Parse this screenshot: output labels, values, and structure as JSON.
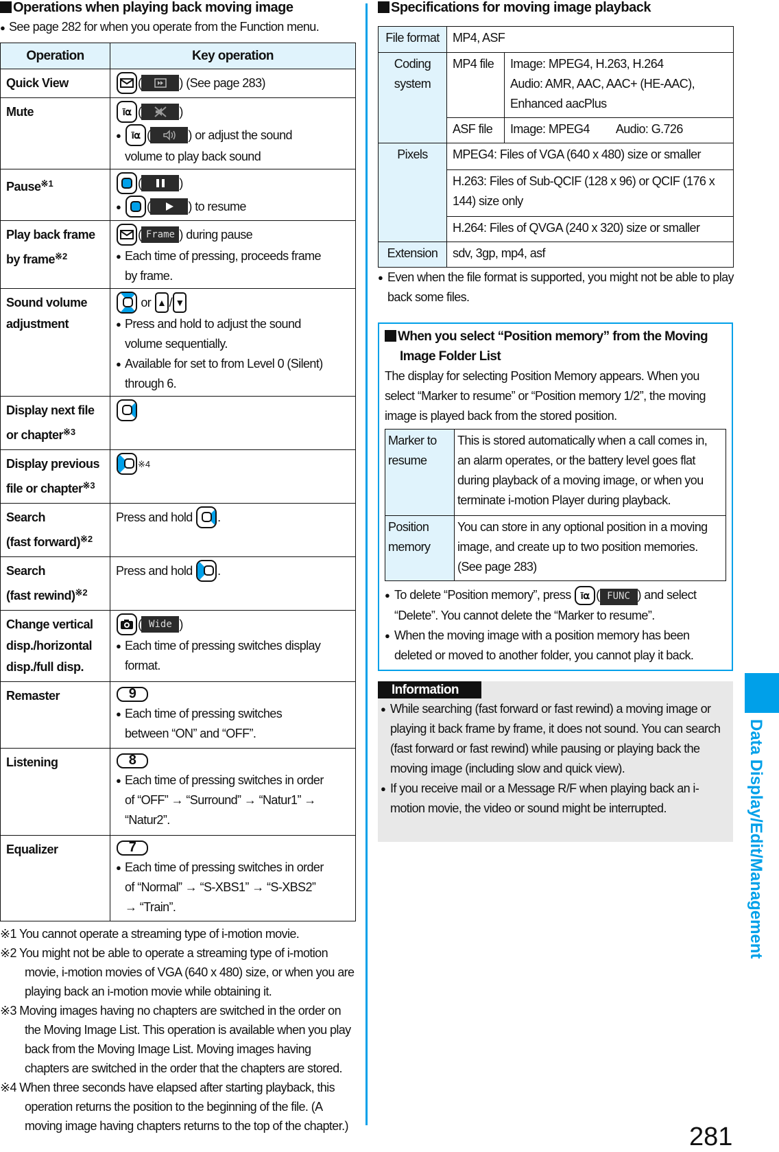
{
  "left": {
    "title": "Operations when playing back moving image",
    "note": "See page 282 for when you operate from the Function menu.",
    "table": {
      "headers": [
        "Operation",
        "Key operation"
      ],
      "rows": [
        {
          "op": [
            "Quick View"
          ],
          "note": "",
          "lines": [
            {
              "seg": [
                {
                  "k": "mail"
                },
                {
                  "t": "("
                },
                {
                  "si": "quick-view"
                },
                {
                  "t": ") (See page 283)"
                }
              ]
            }
          ]
        },
        {
          "op": [
            "Mute"
          ],
          "note": "",
          "lines": [
            {
              "seg": [
                {
                  "k": "i-alpha"
                },
                {
                  "t": "("
                },
                {
                  "si": "mute"
                },
                {
                  "t": ")"
                }
              ]
            },
            {
              "bullet": true,
              "seg": [
                {
                  "k": "i-alpha"
                },
                {
                  "t": "("
                },
                {
                  "si": "speaker"
                },
                {
                  "t": ") or adjust the sound"
                }
              ]
            },
            {
              "indent": true,
              "seg": [
                {
                  "t": "volume to play back sound"
                }
              ]
            }
          ]
        },
        {
          "op": [
            "Pause"
          ],
          "note": "※1",
          "lines": [
            {
              "seg": [
                {
                  "k": "center"
                },
                {
                  "t": "("
                },
                {
                  "si": "pause"
                },
                {
                  "t": ")"
                }
              ]
            },
            {
              "bullet": true,
              "seg": [
                {
                  "k": "center"
                },
                {
                  "t": "("
                },
                {
                  "si": "play"
                },
                {
                  "t": ") to resume"
                }
              ]
            }
          ]
        },
        {
          "op": [
            "Play back frame",
            "by frame"
          ],
          "note": "※2",
          "lines": [
            {
              "seg": [
                {
                  "k": "mail"
                },
                {
                  "t": "("
                },
                {
                  "st": "Frame"
                },
                {
                  "t": ") during pause"
                }
              ]
            },
            {
              "bullet": true,
              "seg": [
                {
                  "t": "Each time of pressing, proceeds frame"
                }
              ]
            },
            {
              "indent": true,
              "seg": [
                {
                  "t": "by frame."
                }
              ]
            }
          ]
        },
        {
          "op": [
            "Sound volume",
            "adjustment"
          ],
          "note": "",
          "lines": [
            {
              "seg": [
                {
                  "k": "up-down"
                },
                {
                  "t": " or "
                },
                {
                  "k": "up"
                },
                {
                  "t": "/"
                },
                {
                  "k": "down"
                }
              ]
            },
            {
              "bullet": true,
              "seg": [
                {
                  "t": "Press and hold to adjust the sound"
                }
              ]
            },
            {
              "indent": true,
              "seg": [
                {
                  "t": "volume sequentially."
                }
              ]
            },
            {
              "bullet": true,
              "seg": [
                {
                  "t": "Available for set to from Level 0 (Silent)"
                }
              ]
            },
            {
              "indent": true,
              "seg": [
                {
                  "t": "through 6."
                }
              ]
            }
          ]
        },
        {
          "op": [
            "Display next file",
            "or chapter"
          ],
          "note": "※3",
          "lines": [
            {
              "seg": [
                {
                  "k": "right"
                }
              ]
            }
          ]
        },
        {
          "op": [
            "Display previous",
            "file or chapter"
          ],
          "note": "※3",
          "lines": [
            {
              "seg": [
                {
                  "k": "left"
                },
                {
                  "sup": "※4"
                }
              ]
            }
          ]
        },
        {
          "op": [
            "Search",
            "(fast forward)"
          ],
          "note": "※2",
          "lines": [
            {
              "seg": [
                {
                  "t": "Press and hold "
                },
                {
                  "k": "right"
                },
                {
                  "t": "."
                }
              ]
            }
          ]
        },
        {
          "op": [
            "Search",
            "(fast rewind)"
          ],
          "note": "※2",
          "lines": [
            {
              "seg": [
                {
                  "t": "Press and hold "
                },
                {
                  "k": "left"
                },
                {
                  "t": "."
                }
              ]
            }
          ]
        },
        {
          "op": [
            "Change vertical",
            "disp./horizontal",
            "disp./full disp."
          ],
          "note": "",
          "lines": [
            {
              "seg": [
                {
                  "k": "camera"
                },
                {
                  "t": "("
                },
                {
                  "st": "Wide"
                },
                {
                  "t": ")"
                }
              ]
            },
            {
              "bullet": true,
              "seg": [
                {
                  "t": "Each time of pressing switches display"
                }
              ]
            },
            {
              "indent": true,
              "seg": [
                {
                  "t": "format."
                }
              ]
            }
          ]
        },
        {
          "op": [
            "Remaster"
          ],
          "note": "",
          "lines": [
            {
              "seg": [
                {
                  "n": "9"
                }
              ]
            },
            {
              "bullet": true,
              "seg": [
                {
                  "t": "Each time of pressing switches"
                }
              ]
            },
            {
              "indent": true,
              "seg": [
                {
                  "t": "between “ON” and “OFF”."
                }
              ]
            }
          ]
        },
        {
          "op": [
            "Listening"
          ],
          "note": "",
          "lines": [
            {
              "seg": [
                {
                  "n": "8"
                }
              ]
            },
            {
              "bullet": true,
              "seg": [
                {
                  "t": "Each time of pressing switches in order"
                }
              ]
            },
            {
              "indent": true,
              "seg": [
                {
                  "t": "of “OFF” → “Surround” → “Natur1” →"
                }
              ]
            },
            {
              "indent": true,
              "seg": [
                {
                  "t": "“Natur2”."
                }
              ]
            }
          ]
        },
        {
          "op": [
            "Equalizer"
          ],
          "note": "",
          "lines": [
            {
              "seg": [
                {
                  "n": "7"
                }
              ]
            },
            {
              "bullet": true,
              "seg": [
                {
                  "t": "Each time of pressing switches in order"
                }
              ]
            },
            {
              "indent": true,
              "seg": [
                {
                  "t": "of “Normal” → “S-XBS1” → “S-XBS2”"
                }
              ]
            },
            {
              "indent": true,
              "seg": [
                {
                  "t": "→ “Train”."
                }
              ]
            }
          ]
        }
      ]
    },
    "footnotes": [
      "※1 You cannot operate a streaming type of i-motion movie.",
      "※2 You might not be able to operate a streaming type of i-motion movie, i-motion movies of VGA (640 x 480) size, or when you are playing back an i-motion movie while obtaining it.",
      "※3 Moving images having no chapters are switched in the order on the Moving Image List. This operation is available when you play back from the Moving Image List. Moving images having chapters are switched in the order that the chapters are stored.",
      "※4 When three seconds have elapsed after starting playback, this operation returns the position to the beginning of the file. (A moving image having chapters returns to the top of the chapter.)"
    ]
  },
  "right": {
    "spec_title": "Specifications for moving image playback",
    "spec": {
      "file_format_label": "File format",
      "file_format": "MP4, ASF",
      "coding_label": "Coding system",
      "mp4_label": "MP4 file",
      "mp4_value": [
        "Image: MPEG4, H.263, H.264",
        "Audio: AMR, AAC, AAC+ (HE-AAC),",
        "Enhanced aacPlus"
      ],
      "asf_label": "ASF file",
      "asf_image": "Image: MPEG4",
      "asf_audio": "Audio: G.726",
      "pixels_label": "Pixels",
      "pixels": [
        "MPEG4: Files of VGA (640 x 480) size or smaller",
        "H.263: Files of Sub-QCIF (128 x 96) or QCIF (176 x 144) size only",
        "H.264: Files of QVGA (240 x 320) size or smaller"
      ],
      "extension_label": "Extension",
      "extension": "sdv, 3gp, mp4, asf"
    },
    "spec_note": "Even when the file format is supported, you might not be able to play back some files.",
    "pm": {
      "title": "When you select “Position memory” from the Moving Image Folder List",
      "intro": "The display for selecting Position Memory appears. When you select “Marker to resume” or “Position memory 1/2”, the moving image is played back from the stored position.",
      "rows": [
        {
          "label": "Marker to resume",
          "text": "This is stored automatically when a call comes in, an alarm operates, or the battery level goes flat during playback of a moving image, or when you terminate i-motion Player during playback."
        },
        {
          "label": "Position memory",
          "text": "You can store in any optional position in a moving image, and create up to two position memories. (See page 283)"
        }
      ],
      "bullet1_a": "To delete “Position memory”, press ",
      "bullet1_soft": "FUNC",
      "bullet1_b": ") and select “Delete”. You cannot delete the “Marker to resume”.",
      "bullet2": "When the moving image with a position memory has been deleted or moved to another folder, you cannot play it back."
    },
    "info": {
      "label": "Information",
      "bullets": [
        "While searching (fast forward or fast rewind) a moving image or playing it back frame by frame, it does not sound. You can search (fast forward or fast rewind) while pausing or playing back the moving image (including slow and quick view).",
        "If you receive mail or a Message R/F when playing back an i-motion movie, the video or sound might be interrupted."
      ]
    }
  },
  "side_tab": "Data Display/Edit/Management",
  "page_number": "281",
  "colors": {
    "accent": "#00a0e9",
    "header_bg": "#e0f3fc",
    "info_bg": "#e8e8e8"
  }
}
